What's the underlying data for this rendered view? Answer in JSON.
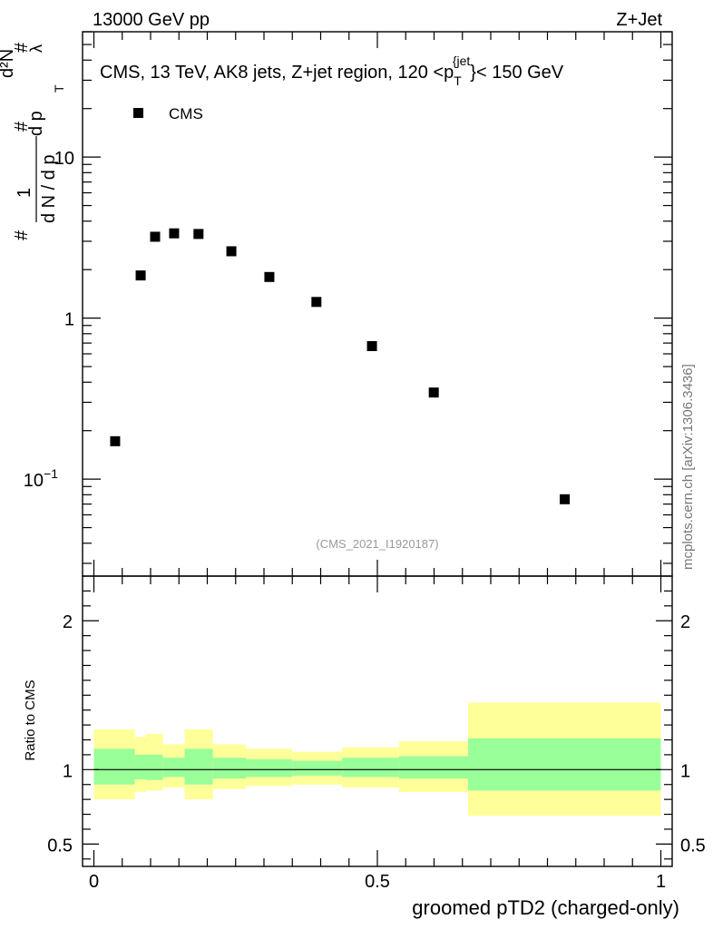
{
  "header": {
    "energy": "13000 GeV pp",
    "process": "Z+Jet"
  },
  "colors": {
    "stat_band": "#99ff99",
    "syst_band": "#ffff99",
    "marker": "#000000",
    "ref_line": "#000000",
    "ref_label": "#999999",
    "watermark": "#777777"
  },
  "chart_data": [
    {
      "type": "scatter",
      "title": "CMS, 13 TeV, AK8 jets, Z+jet region, 120 <p_T^{jet}< 150 GeV",
      "title_parts": {
        "prefix": "CMS, 13 TeV, AK8 jets, Z+jet region, 120 <p",
        "sub": "T",
        "sup": "{jet",
        "suffix": "}< 150 GeV"
      },
      "ylabel_parts": {
        "hash1": "#",
        "one": "1",
        "dN_over_dp": "d N / d p",
        "hash2": "#",
        "dp": "d p",
        "hash3": "#",
        "sub_T": "T",
        "d2N": "d²N",
        "dpT": "d p  T d",
        "lambda": "λ"
      },
      "yscale": "log",
      "ylim": [
        0.025,
        60
      ],
      "xlim": [
        -0.02,
        1.02
      ],
      "y_ticks": [
        {
          "value": 0.1,
          "label": "10",
          "sup": "−1"
        },
        {
          "value": 1,
          "label": "1"
        },
        {
          "value": 10,
          "label": "10"
        }
      ],
      "series": [
        {
          "name": "CMS",
          "x": [
            0.0375,
            0.0825,
            0.108,
            0.1415,
            0.1845,
            0.2425,
            0.3095,
            0.3925,
            0.4905,
            0.5995,
            0.8305
          ],
          "values": [
            0.172,
            1.84,
            3.2,
            3.36,
            3.33,
            2.6,
            1.8,
            1.26,
            0.67,
            0.345,
            0.075
          ]
        }
      ],
      "legend": {
        "label": "CMS",
        "placement": "top-left"
      },
      "reference_label": "(CMS_2021_I1920187)"
    },
    {
      "type": "area",
      "ylabel": "Ratio to CMS",
      "xlabel": "groomed pTD2 (charged-only)",
      "xlim": [
        -0.02,
        1.02
      ],
      "ylim": [
        0.35,
        2.3
      ],
      "y_ticks": [
        {
          "value": 0.5,
          "label": "0.5"
        },
        {
          "value": 1,
          "label": "1"
        },
        {
          "value": 2,
          "label": "2"
        }
      ],
      "x_ticks": [
        {
          "value": 0,
          "label": "0"
        },
        {
          "value": 0.5,
          "label": "0.5"
        },
        {
          "value": 1,
          "label": "1"
        }
      ],
      "reference_line": 1,
      "bins": [
        {
          "lo": 0.0,
          "hi": 0.072,
          "syst": [
            0.8,
            1.27
          ],
          "stat": [
            0.9,
            1.14
          ]
        },
        {
          "lo": 0.072,
          "hi": 0.092,
          "syst": [
            0.85,
            1.22
          ],
          "stat": [
            0.935,
            1.1
          ]
        },
        {
          "lo": 0.092,
          "hi": 0.122,
          "syst": [
            0.86,
            1.24
          ],
          "stat": [
            0.93,
            1.1
          ]
        },
        {
          "lo": 0.122,
          "hi": 0.16,
          "syst": [
            0.88,
            1.17
          ],
          "stat": [
            0.95,
            1.08
          ]
        },
        {
          "lo": 0.16,
          "hi": 0.21,
          "syst": [
            0.8,
            1.27
          ],
          "stat": [
            0.9,
            1.14
          ]
        },
        {
          "lo": 0.21,
          "hi": 0.268,
          "syst": [
            0.87,
            1.17
          ],
          "stat": [
            0.94,
            1.08
          ]
        },
        {
          "lo": 0.268,
          "hi": 0.35,
          "syst": [
            0.89,
            1.14
          ],
          "stat": [
            0.95,
            1.07
          ]
        },
        {
          "lo": 0.35,
          "hi": 0.438,
          "syst": [
            0.9,
            1.12
          ],
          "stat": [
            0.96,
            1.06
          ]
        },
        {
          "lo": 0.438,
          "hi": 0.538,
          "syst": [
            0.88,
            1.15
          ],
          "stat": [
            0.95,
            1.08
          ]
        },
        {
          "lo": 0.538,
          "hi": 0.66,
          "syst": [
            0.85,
            1.19
          ],
          "stat": [
            0.94,
            1.09
          ]
        },
        {
          "lo": 0.66,
          "hi": 1.0,
          "syst": [
            0.69,
            1.45
          ],
          "stat": [
            0.86,
            1.21
          ]
        }
      ]
    }
  ],
  "watermark": "mcplots.cern.ch [arXiv:1306.3436]"
}
